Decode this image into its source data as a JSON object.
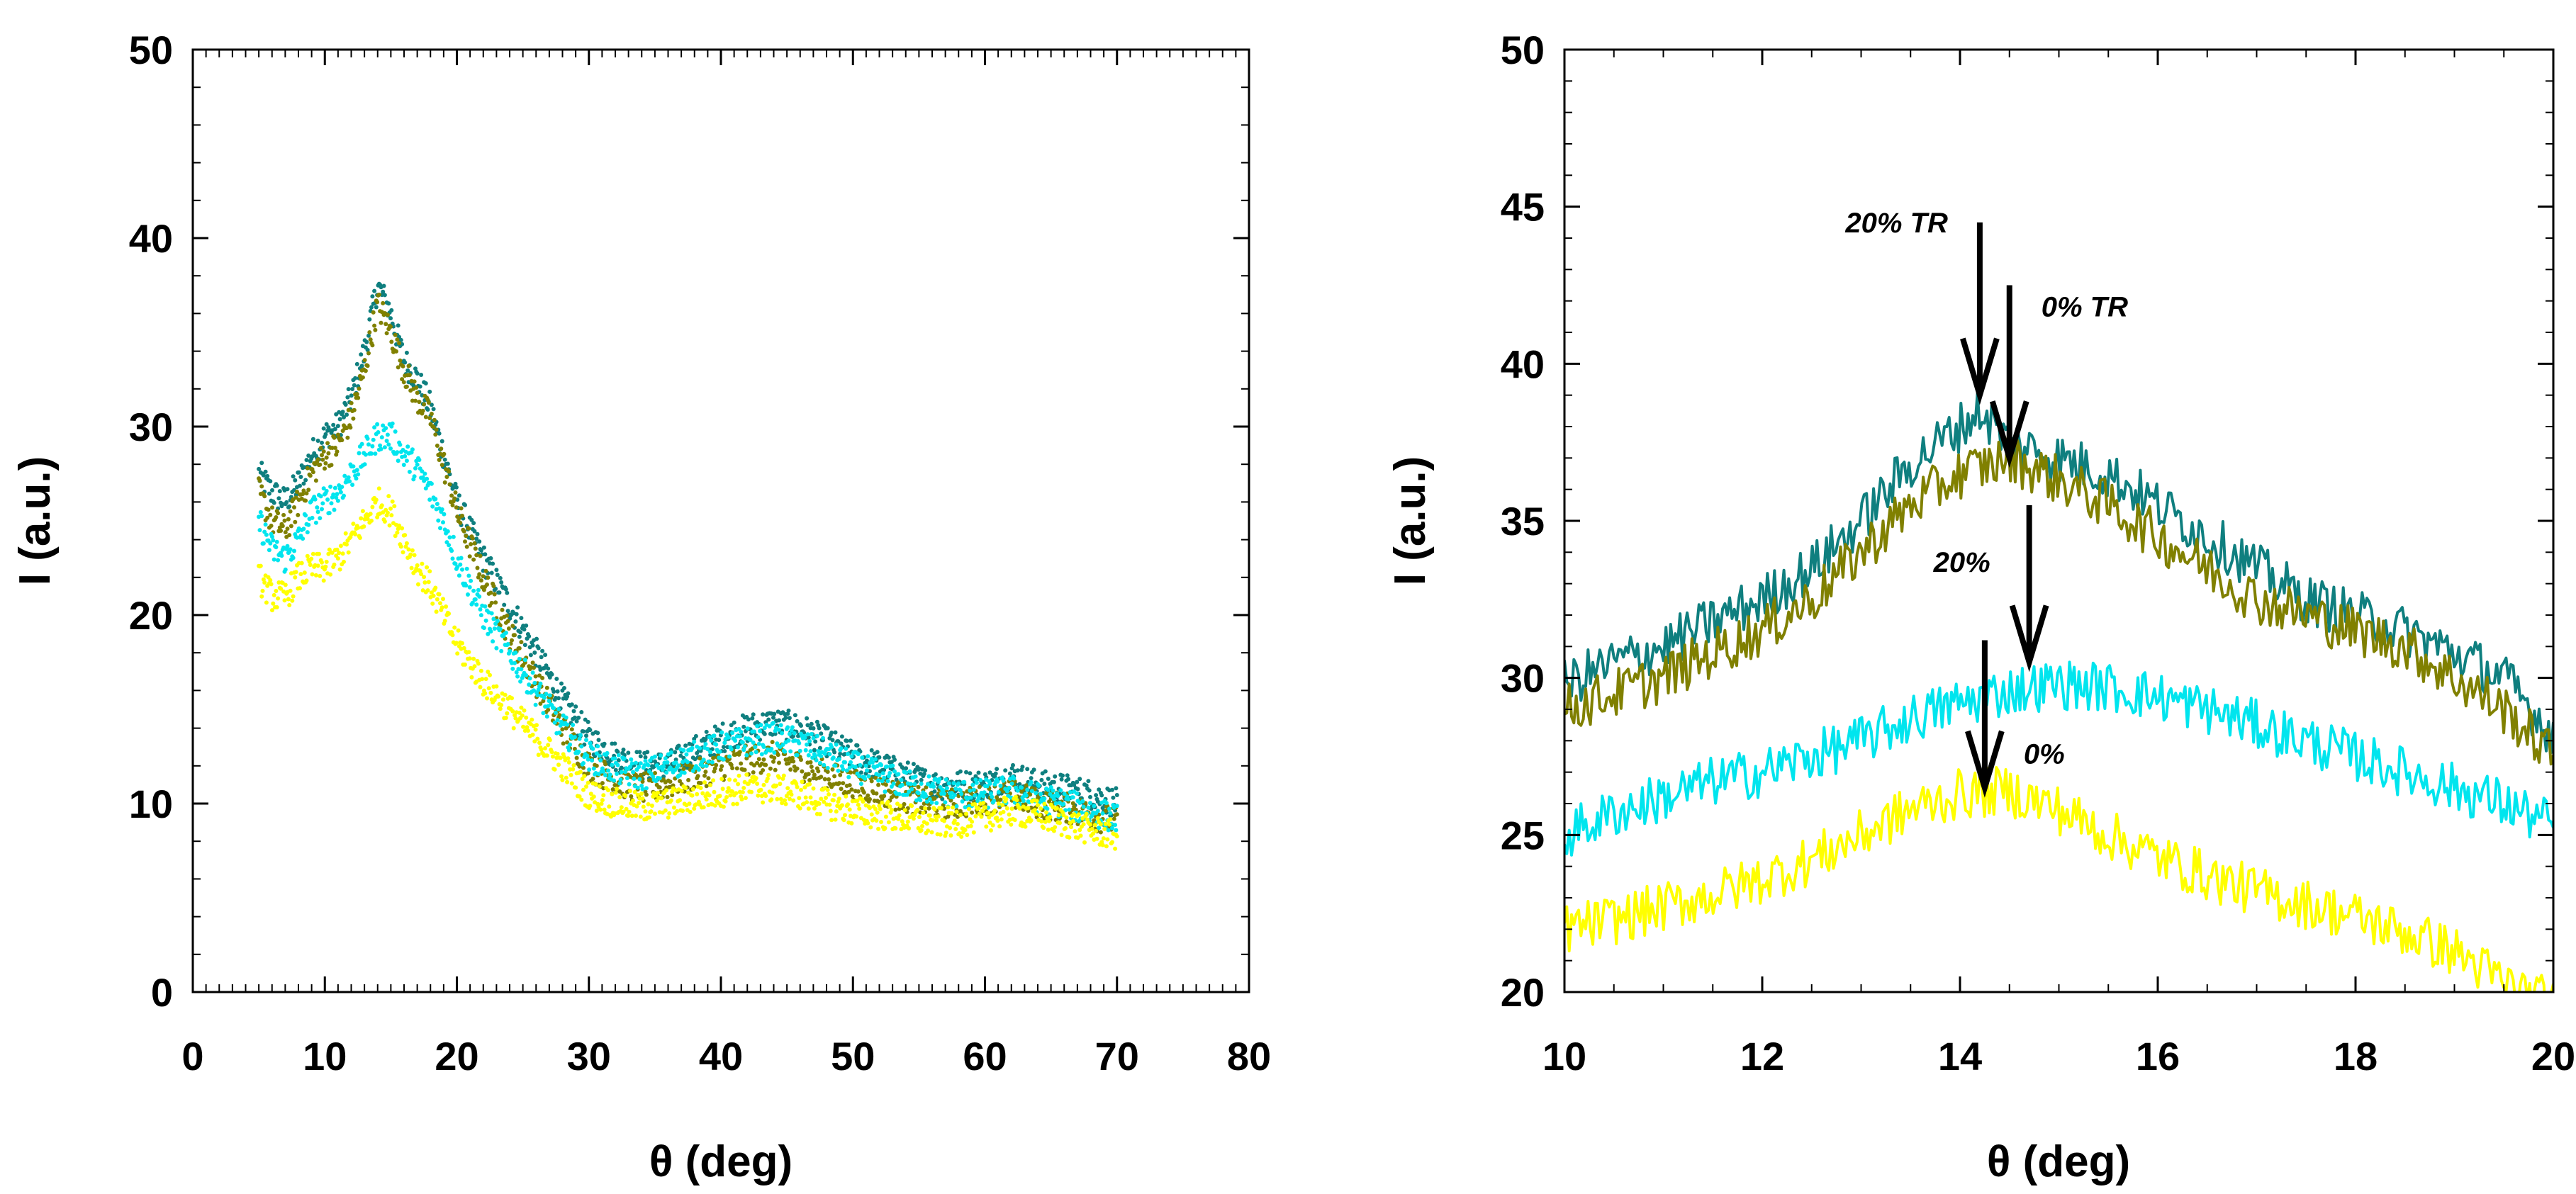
{
  "chart_data": [
    {
      "type": "scatter",
      "title": "",
      "xlabel": "θ (deg)",
      "ylabel": "I (a.u.)",
      "xlim": [
        0,
        80
      ],
      "ylim": [
        0,
        50
      ],
      "xticks": [
        0,
        10,
        20,
        30,
        40,
        50,
        60,
        70,
        80
      ],
      "yticks": [
        0,
        10,
        20,
        30,
        40,
        50
      ],
      "xtick_labels": [
        "0",
        "10",
        "20",
        "30",
        "40",
        "50",
        "60",
        "70",
        "80"
      ],
      "ytick_labels": [
        "0",
        "10",
        "20",
        "30",
        "40",
        "50"
      ],
      "grid": false,
      "legend": "none",
      "series": [
        {
          "name": "20% TR",
          "color": "#0f7f7f",
          "x": [
            5,
            6,
            7,
            8,
            9,
            10,
            11,
            12,
            13,
            14,
            15,
            16,
            17,
            18,
            19,
            20,
            22,
            24,
            26,
            28,
            30,
            32,
            34,
            36,
            38,
            40,
            42,
            44,
            46,
            48,
            50,
            52,
            54,
            56,
            58,
            60,
            62,
            64,
            66,
            68,
            70
          ],
          "y": [
            27.5,
            26.5,
            26,
            27,
            28.5,
            29.5,
            30,
            31.5,
            34,
            37.5,
            36,
            33.5,
            32.5,
            31,
            28.5,
            26,
            23,
            20.5,
            18,
            15.5,
            13.5,
            12.5,
            12,
            12,
            12.8,
            13.5,
            14,
            14.3,
            14,
            13.3,
            12.5,
            12,
            11.5,
            11,
            11,
            11,
            11.5,
            11,
            10.8,
            10.5,
            10
          ]
        },
        {
          "name": "0% TR",
          "color": "#808000",
          "x": [
            5,
            6,
            7,
            8,
            9,
            10,
            11,
            12,
            13,
            14,
            15,
            16,
            17,
            18,
            19,
            20,
            22,
            24,
            26,
            28,
            30,
            32,
            34,
            36,
            38,
            40,
            42,
            44,
            46,
            48,
            50,
            52,
            54,
            56,
            58,
            60,
            62,
            64,
            66,
            68,
            70
          ],
          "y": [
            26.5,
            25,
            24.5,
            26,
            27.5,
            28.5,
            29,
            30.5,
            33,
            36.5,
            35,
            33,
            31.5,
            30.5,
            28,
            25.5,
            22,
            19,
            16.5,
            14,
            12,
            11.2,
            10.8,
            11,
            11.5,
            12,
            12.3,
            12.5,
            12,
            11.5,
            11,
            10.7,
            10.3,
            10,
            10,
            10.2,
            10.5,
            10,
            9.8,
            9.4,
            9
          ]
        },
        {
          "name": "20%",
          "color": "#00e5ee",
          "x": [
            5,
            6,
            7,
            8,
            9,
            10,
            11,
            12,
            13,
            14,
            15,
            16,
            17,
            18,
            19,
            20,
            22,
            24,
            26,
            28,
            30,
            32,
            34,
            36,
            38,
            40,
            42,
            44,
            46,
            48,
            50,
            52,
            54,
            56,
            58,
            60,
            62,
            64,
            66,
            68,
            70
          ],
          "y": [
            25,
            23.5,
            23,
            24,
            25.5,
            26,
            26.5,
            27.5,
            28.5,
            29.5,
            29.5,
            28.5,
            27.8,
            26.5,
            25,
            23,
            20,
            18,
            16,
            14,
            12.5,
            11.8,
            11.5,
            12,
            12.5,
            13,
            13.3,
            13.5,
            13.2,
            12.6,
            12,
            11.5,
            11,
            10.7,
            10.5,
            10.5,
            10.7,
            10.3,
            10,
            9.6,
            9.2
          ]
        },
        {
          "name": "0%",
          "color": "#ffff00",
          "x": [
            5,
            6,
            7,
            8,
            9,
            10,
            11,
            12,
            13,
            14,
            15,
            16,
            17,
            18,
            19,
            20,
            22,
            24,
            26,
            28,
            30,
            32,
            34,
            36,
            38,
            40,
            42,
            44,
            46,
            48,
            50,
            52,
            54,
            56,
            58,
            60,
            62,
            64,
            66,
            68,
            70
          ],
          "y": [
            22,
            21,
            21,
            22,
            22.5,
            22.5,
            23,
            24,
            25,
            26,
            25.5,
            24,
            22.5,
            21.5,
            20,
            18.5,
            16.5,
            15,
            13.5,
            12,
            10.5,
            10,
            9.8,
            10,
            10.3,
            10.6,
            10.8,
            10.8,
            10.5,
            10,
            9.6,
            9.4,
            9.2,
            9,
            9,
            9.3,
            9.6,
            9.4,
            9,
            8.6,
            8.3
          ]
        }
      ]
    },
    {
      "type": "line",
      "title": "",
      "xlabel": "θ (deg)",
      "ylabel": "I (a.u.)",
      "xlim": [
        10,
        20
      ],
      "ylim": [
        20,
        50
      ],
      "xticks": [
        10,
        12,
        14,
        16,
        18,
        20
      ],
      "yticks": [
        20,
        25,
        30,
        35,
        40,
        45,
        50
      ],
      "xtick_labels": [
        "10",
        "12",
        "14",
        "16",
        "18",
        "20"
      ],
      "ytick_labels": [
        "20",
        "25",
        "30",
        "35",
        "40",
        "45",
        "50"
      ],
      "grid": false,
      "legend": "none",
      "series": [
        {
          "name": "20% TR",
          "color": "#0f7f7f",
          "x": [
            10,
            10.5,
            11,
            11.5,
            12,
            12.5,
            13,
            13.5,
            14,
            14.2,
            14.5,
            15,
            15.5,
            16,
            16.5,
            17,
            17.5,
            18,
            18.5,
            19,
            19.5,
            20
          ],
          "y": [
            29.8,
            30.5,
            31,
            31.8,
            32.5,
            33.5,
            35,
            36.8,
            38,
            38.5,
            37.5,
            37,
            36.5,
            35.5,
            34.5,
            33.5,
            32.5,
            32,
            31.5,
            30.8,
            30,
            28.2
          ]
        },
        {
          "name": "0% TR",
          "color": "#808000",
          "x": [
            10,
            10.5,
            11,
            11.5,
            12,
            12.5,
            13,
            13.5,
            14,
            14.5,
            15,
            15.5,
            16,
            16.5,
            17,
            17.5,
            18,
            18.5,
            19,
            19.5,
            20
          ],
          "y": [
            29,
            29.5,
            30,
            30.8,
            31.5,
            32.5,
            34,
            35.5,
            36.5,
            37,
            36.3,
            35.5,
            34.5,
            33.5,
            32.5,
            32,
            31.5,
            31,
            30,
            29,
            27.5
          ]
        },
        {
          "name": "20%",
          "color": "#00e5ee",
          "x": [
            10,
            10.5,
            11,
            11.5,
            12,
            12.5,
            13,
            13.5,
            14,
            14.5,
            15,
            15.5,
            16,
            16.5,
            17,
            17.5,
            18,
            18.5,
            19,
            19.5,
            20
          ],
          "y": [
            25,
            25.7,
            26.2,
            26.7,
            27,
            27.5,
            28,
            28.7,
            29.2,
            29.6,
            29.8,
            29.7,
            29.4,
            29,
            28.5,
            28,
            27.5,
            27,
            26.5,
            26,
            25.3
          ]
        },
        {
          "name": "0%",
          "color": "#ffff00",
          "x": [
            10,
            10.5,
            11,
            11.5,
            12,
            12.5,
            13,
            13.5,
            14,
            14.5,
            15,
            15.5,
            16,
            16.5,
            17,
            17.5,
            18,
            18.5,
            19,
            19.5,
            20
          ],
          "y": [
            22,
            22.3,
            22.7,
            23.1,
            23.6,
            24.2,
            25,
            25.8,
            26.3,
            26.4,
            25.8,
            25,
            24.3,
            23.7,
            23.2,
            22.8,
            22.4,
            21.9,
            21.3,
            20.3,
            19.6
          ]
        }
      ],
      "annotations": [
        {
          "text": "20% TR",
          "arrow_x": 14.2,
          "arrow_tail_y": 44.5,
          "arrow_head_y": 39
        },
        {
          "text": "0% TR",
          "arrow_x": 14.5,
          "arrow_tail_y": 42.5,
          "arrow_head_y": 37
        },
        {
          "text": "20%",
          "arrow_x": 14.7,
          "arrow_tail_y": 35.5,
          "arrow_head_y": 30.5
        },
        {
          "text": "0%",
          "arrow_x": 14.25,
          "arrow_tail_y": 31.2,
          "arrow_head_y": 26.5
        }
      ]
    }
  ]
}
